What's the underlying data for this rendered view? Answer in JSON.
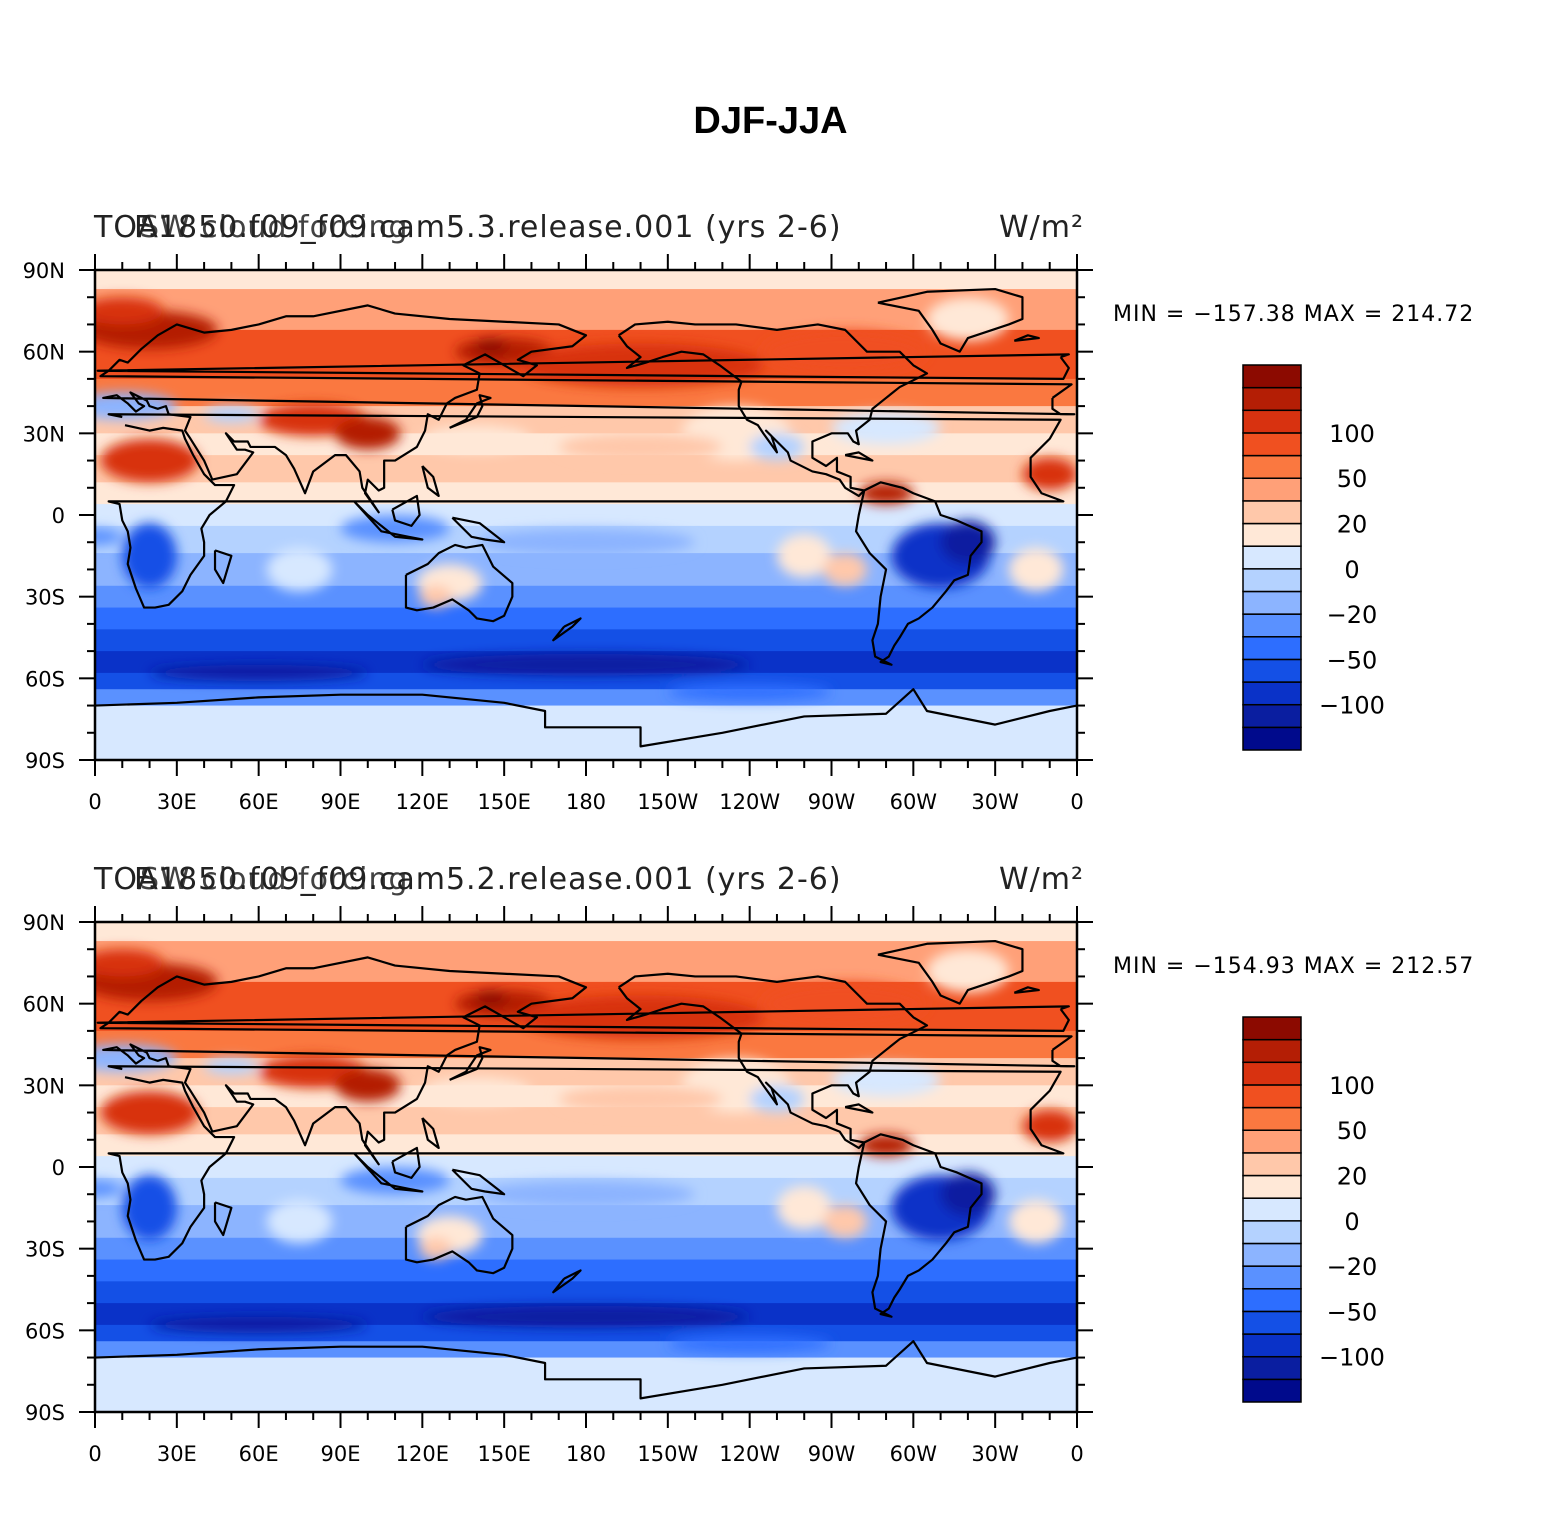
{
  "title": "DJF-JJA",
  "colors": {
    "levels": [
      "#000a8c",
      "#0a1ea0",
      "#0a32c8",
      "#1450e6",
      "#2d6eff",
      "#5a91ff",
      "#8cb4ff",
      "#b4d2ff",
      "#d7e8ff",
      "#ffe8d7",
      "#ffc8aa",
      "#ffa078",
      "#fa7840",
      "#f05020",
      "#d83210",
      "#b41e05",
      "#8c0a00"
    ],
    "coast": "#000000"
  },
  "colorbar": {
    "labels": [
      {
        "index": 14,
        "text": "100"
      },
      {
        "index": 12,
        "text": "50"
      },
      {
        "index": 10,
        "text": "20"
      },
      {
        "index": 8,
        "text": "0"
      },
      {
        "index": 6,
        "text": "−20"
      },
      {
        "index": 4,
        "text": "−50"
      },
      {
        "index": 2,
        "text": "−100"
      }
    ]
  },
  "axes": {
    "lat_labels": [
      "90N",
      "60N",
      "30N",
      "0",
      "30S",
      "60S",
      "90S"
    ],
    "lon_labels": [
      "0",
      "30E",
      "60E",
      "90E",
      "120E",
      "150E",
      "180",
      "150W",
      "120W",
      "90W",
      "60W",
      "30W",
      "0"
    ]
  },
  "panels": [
    {
      "title_left_1": "TOA",
      "title_left_2": "F.1850.f09_f09.cam5.3.release.001 (yrs 2-6)",
      "title_right_1": "W/m²",
      "title_overlap": "SW cloud forcing",
      "minmax": "MIN = −157.38 MAX = 214.72",
      "min": -157.38,
      "max": 214.72
    },
    {
      "title_left_1": "TOA",
      "title_left_2": "F.1850.f09_f09.cam5.2.release.001 (yrs 2-6)",
      "title_right_1": "W/m²",
      "title_overlap": "SW cloud forcing",
      "minmax": "MIN = −154.93 MAX = 212.57",
      "min": -154.93,
      "max": 212.57
    }
  ]
}
